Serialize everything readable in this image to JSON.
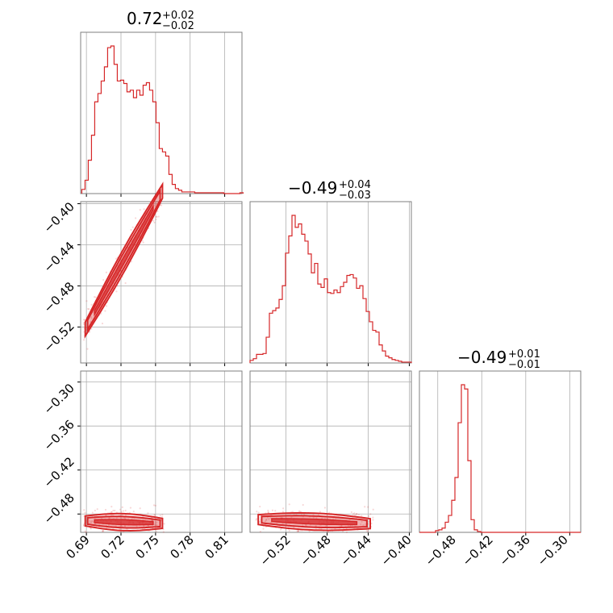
{
  "chart_data": {
    "type": "corner",
    "color": "#d62728",
    "parameters": [
      {
        "title": {
          "median": "0.72",
          "plus": "+0.02",
          "minus": "−0.02"
        },
        "range": [
          0.685,
          0.825
        ],
        "ticks": [
          0.69,
          0.72,
          0.75,
          0.78,
          0.81
        ],
        "tick_labels": [
          "0.69",
          "0.72",
          "0.75",
          "0.78",
          "0.81"
        ]
      },
      {
        "title": {
          "median": "−0.49",
          "plus": "+0.04",
          "minus": "−0.03"
        },
        "range": [
          -0.555,
          -0.398
        ],
        "ticks": [
          -0.52,
          -0.48,
          -0.44,
          -0.4
        ],
        "tick_labels": [
          "−0.52",
          "−0.48",
          "−0.44",
          "−0.40"
        ]
      },
      {
        "title": {
          "median": "−0.49",
          "plus": "+0.01",
          "minus": "−0.01"
        },
        "range": [
          -0.505,
          -0.285
        ],
        "ticks": [
          -0.48,
          -0.42,
          -0.36,
          -0.3
        ],
        "tick_labels": [
          "−0.48",
          "−0.42",
          "−0.36",
          "−0.30"
        ]
      }
    ],
    "row_tick_labels": {
      "row1": [
        "−0.40",
        "−0.44",
        "−0.48",
        "−0.52"
      ],
      "row2": [
        "−0.30",
        "−0.36",
        "−0.42",
        "−0.48"
      ]
    },
    "bottom_tick_labels": {
      "col0": [
        "0.69",
        "0.72",
        "0.75",
        "0.78",
        "0.81"
      ],
      "col1": [
        "−0.52",
        "−0.48",
        "−0.44",
        "−0.40"
      ],
      "col2": [
        "−0.48",
        "−0.42",
        "−0.36",
        "−0.30"
      ]
    },
    "histograms": {
      "p0": {
        "x0": 0.686,
        "dx": 0.0028,
        "counts": [
          5,
          16,
          40,
          70,
          110,
          120,
          135,
          152,
          175,
          177,
          155,
          135,
          136,
          132,
          122,
          124,
          115,
          124,
          118,
          130,
          133,
          124,
          110,
          85,
          54,
          50,
          45,
          23,
          11,
          6,
          4,
          2,
          2,
          2,
          2,
          1,
          1,
          1,
          1,
          1,
          1,
          1,
          1,
          1,
          0,
          0,
          0,
          0,
          0,
          1
        ]
      },
      "p1": {
        "x0": -0.555,
        "dx": 0.00314,
        "counts": [
          3,
          5,
          10,
          10,
          11,
          30,
          58,
          61,
          64,
          74,
          90,
          128,
          148,
          172,
          158,
          162,
          150,
          142,
          127,
          105,
          116,
          92,
          88,
          98,
          82,
          81,
          85,
          82,
          89,
          94,
          102,
          103,
          99,
          87,
          90,
          75,
          60,
          48,
          38,
          36,
          21,
          14,
          8,
          6,
          4,
          3,
          2,
          1,
          1,
          1
        ]
      },
      "p2": {
        "x0": -0.505,
        "dx": 0.0044,
        "counts": [
          0,
          0,
          0,
          0,
          0,
          2,
          3,
          5,
          12,
          20,
          38,
          65,
          130,
          175,
          170,
          85,
          15,
          3,
          1,
          0,
          0,
          0,
          0,
          0,
          0,
          0,
          0,
          0,
          0,
          0,
          0,
          0,
          0,
          0,
          0,
          0,
          0,
          0,
          0,
          0,
          0,
          0,
          0,
          0,
          0,
          0,
          0,
          0,
          0,
          0
        ]
      }
    },
    "joint_relations": {
      "p1_vs_p0": {
        "slope": 2.0,
        "intercept": -1.9,
        "spread": 0.004,
        "x_span": [
          0.689,
          0.756
        ]
      },
      "p2_vs_p0": {
        "slope": -0.05,
        "intercept": -0.455,
        "spread": 0.004,
        "x_span": [
          0.689,
          0.756
        ]
      },
      "p2_vs_p1": {
        "slope": -0.05,
        "intercept": -0.515,
        "spread": 0.004,
        "x_span": [
          -0.547,
          -0.438
        ]
      }
    }
  }
}
